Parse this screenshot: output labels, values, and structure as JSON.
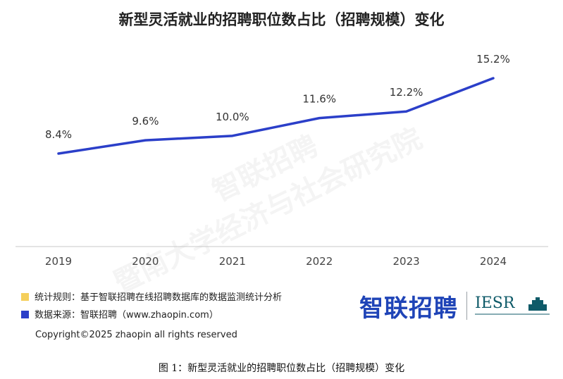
{
  "chart_data": {
    "type": "line",
    "title": "新型灵活就业的招聘职位数占比（招聘规模）变化",
    "categories": [
      "2019",
      "2020",
      "2021",
      "2022",
      "2023",
      "2024"
    ],
    "series": [
      {
        "values": [
          8.4,
          9.6,
          10.0,
          11.6,
          12.2,
          15.2
        ],
        "labels": [
          "8.4%",
          "9.6%",
          "10.0%",
          "11.6%",
          "12.2%",
          "15.2%"
        ]
      }
    ],
    "ylim": [
      0,
      16
    ],
    "grid": false,
    "line_color": "#2b3fc9"
  },
  "watermark": {
    "line1": "智联招聘",
    "line2": "暨南大学经济与社会研究院"
  },
  "legend": [
    {
      "text": "统计规则：基于智联招聘在线招聘数据库的数据监测统计分析",
      "color": "#f5cf5b"
    },
    {
      "text": "数据来源：智联招聘（www.zhaopin.com）",
      "color": "#2b3fc9"
    }
  ],
  "copyright": "Copyright©2025 zhaopin all rights reserved",
  "logos": {
    "zhaopin": "智联招聘",
    "iesr": "IESR"
  },
  "caption": "图 1：新型灵活就业的招聘职位数占比（招聘规模）变化"
}
